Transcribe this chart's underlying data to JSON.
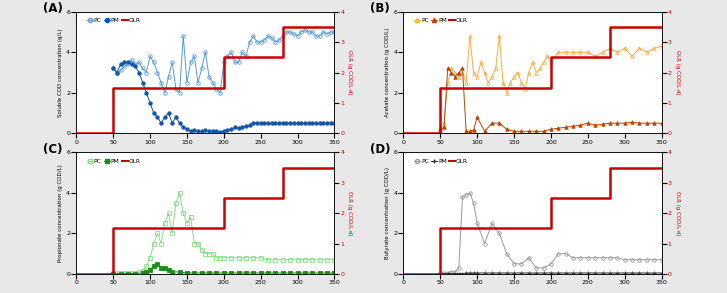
{
  "fig_width": 7.27,
  "fig_height": 2.93,
  "bg_color": "#e8e8e8",
  "panel_bg": "#ffffff",
  "xlim": [
    0,
    350
  ],
  "xticks": [
    0,
    50,
    100,
    150,
    200,
    250,
    300,
    350
  ],
  "panels": {
    "A": {
      "label": "(A)",
      "ylabel_left": "Soluble COD concentration (g/L)",
      "ylabel_right": "OLR (g COD/L·d)",
      "ylim_left": [
        0,
        6
      ],
      "ylim_right": [
        0,
        4
      ],
      "yticks_left": [
        0,
        2,
        4,
        6
      ],
      "yticks_right": [
        0,
        1,
        2,
        3,
        4
      ],
      "color_PC": "#5599dd",
      "color_PM": "#1155aa",
      "color_OLR": "#cc0000",
      "marker_PC": "o",
      "marker_PM": "o",
      "OLR_x": [
        0,
        50,
        50,
        200,
        200,
        280,
        280,
        350
      ],
      "OLR_y": [
        0,
        0,
        1.5,
        1.5,
        2.5,
        2.5,
        3.5,
        3.5
      ],
      "PC_x": [
        50,
        55,
        60,
        65,
        70,
        75,
        80,
        85,
        90,
        95,
        100,
        105,
        110,
        115,
        120,
        125,
        130,
        135,
        140,
        145,
        150,
        155,
        160,
        165,
        170,
        175,
        180,
        185,
        190,
        195,
        200,
        205,
        210,
        215,
        220,
        225,
        230,
        235,
        240,
        245,
        250,
        255,
        260,
        265,
        270,
        275,
        280,
        285,
        290,
        295,
        300,
        305,
        310,
        315,
        320,
        325,
        330,
        335,
        340,
        345,
        350
      ],
      "PC_y": [
        3.2,
        3.0,
        3.1,
        3.3,
        3.4,
        3.6,
        3.4,
        3.5,
        3.2,
        3.0,
        3.8,
        3.5,
        3.0,
        2.5,
        2.0,
        2.8,
        3.5,
        2.2,
        2.0,
        4.8,
        2.5,
        3.5,
        3.8,
        2.5,
        3.2,
        4.0,
        2.8,
        2.5,
        2.2,
        2.0,
        3.5,
        3.8,
        4.0,
        3.5,
        3.5,
        4.0,
        3.8,
        4.5,
        4.8,
        4.5,
        4.5,
        4.6,
        4.8,
        4.7,
        4.5,
        4.6,
        4.8,
        5.0,
        5.0,
        4.9,
        4.8,
        5.0,
        5.1,
        5.0,
        5.0,
        4.8,
        4.8,
        5.0,
        4.9,
        5.0,
        5.0
      ],
      "PM_x": [
        50,
        55,
        60,
        65,
        70,
        75,
        80,
        85,
        90,
        95,
        100,
        105,
        110,
        115,
        120,
        125,
        130,
        135,
        140,
        145,
        150,
        155,
        160,
        165,
        170,
        175,
        180,
        185,
        190,
        195,
        200,
        205,
        210,
        215,
        220,
        225,
        230,
        235,
        240,
        245,
        250,
        255,
        260,
        265,
        270,
        275,
        280,
        285,
        290,
        295,
        300,
        305,
        310,
        315,
        320,
        325,
        330,
        335,
        340,
        345,
        350
      ],
      "PM_y": [
        3.2,
        3.0,
        3.4,
        3.5,
        3.5,
        3.4,
        3.3,
        3.0,
        2.5,
        2.0,
        1.5,
        1.0,
        0.8,
        0.5,
        0.8,
        1.0,
        0.5,
        0.8,
        0.5,
        0.3,
        0.2,
        0.1,
        0.15,
        0.1,
        0.1,
        0.15,
        0.1,
        0.12,
        0.1,
        0.08,
        0.1,
        0.15,
        0.2,
        0.3,
        0.25,
        0.3,
        0.35,
        0.4,
        0.5,
        0.5,
        0.5,
        0.5,
        0.5,
        0.5,
        0.5,
        0.5,
        0.5,
        0.5,
        0.5,
        0.5,
        0.5,
        0.5,
        0.5,
        0.5,
        0.5,
        0.5,
        0.5,
        0.5,
        0.5,
        0.5,
        0.5
      ]
    },
    "B": {
      "label": "(B)",
      "ylabel_left": "Acetate concentration (g COD/L)",
      "ylabel_right": "OLR (g COD/L·d)",
      "ylim_left": [
        0,
        6
      ],
      "ylim_right": [
        0,
        4
      ],
      "yticks_left": [
        0,
        2,
        4,
        6
      ],
      "yticks_right": [
        0,
        1,
        2,
        3,
        4
      ],
      "color_PC": "#ffaa44",
      "color_PM": "#bb4400",
      "color_OLR": "#cc0000",
      "marker_PC": "^",
      "marker_PM": "^",
      "OLR_x": [
        0,
        50,
        50,
        200,
        200,
        280,
        280,
        350
      ],
      "OLR_y": [
        0,
        0,
        1.5,
        1.5,
        2.5,
        2.5,
        3.5,
        3.5
      ],
      "PC_x": [
        50,
        55,
        60,
        65,
        70,
        75,
        80,
        85,
        90,
        95,
        100,
        105,
        110,
        115,
        120,
        125,
        130,
        135,
        140,
        145,
        150,
        155,
        160,
        165,
        170,
        175,
        180,
        185,
        190,
        195,
        200,
        210,
        220,
        230,
        240,
        250,
        260,
        270,
        280,
        290,
        300,
        310,
        320,
        330,
        340,
        350
      ],
      "PC_y": [
        0.3,
        0.5,
        2.5,
        3.2,
        3.0,
        2.8,
        3.0,
        2.5,
        4.8,
        3.0,
        2.8,
        3.5,
        3.0,
        2.5,
        2.8,
        3.2,
        4.8,
        2.5,
        2.0,
        2.5,
        2.8,
        3.0,
        2.5,
        2.2,
        3.0,
        3.5,
        3.0,
        3.2,
        3.5,
        3.8,
        3.5,
        4.0,
        4.0,
        4.0,
        4.0,
        4.0,
        3.8,
        4.0,
        4.2,
        4.0,
        4.2,
        3.8,
        4.2,
        4.0,
        4.2,
        4.3
      ],
      "PM_x": [
        50,
        55,
        60,
        65,
        70,
        75,
        80,
        85,
        90,
        95,
        100,
        110,
        120,
        130,
        140,
        150,
        160,
        170,
        180,
        190,
        200,
        210,
        220,
        230,
        240,
        250,
        260,
        270,
        280,
        290,
        300,
        310,
        320,
        330,
        340,
        350
      ],
      "PM_y": [
        0.2,
        0.3,
        3.2,
        3.0,
        2.8,
        3.0,
        3.2,
        0.1,
        0.1,
        0.15,
        0.8,
        0.1,
        0.5,
        0.5,
        0.2,
        0.1,
        0.1,
        0.1,
        0.1,
        0.1,
        0.2,
        0.25,
        0.3,
        0.35,
        0.4,
        0.5,
        0.4,
        0.45,
        0.5,
        0.5,
        0.5,
        0.55,
        0.5,
        0.5,
        0.5,
        0.5
      ]
    },
    "C": {
      "label": "(C)",
      "ylabel_left": "Propionate concentration (g COD/L)",
      "ylabel_right": "OLR (g COD/L·d)",
      "ylim_left": [
        0,
        6
      ],
      "ylim_right": [
        0,
        4
      ],
      "yticks_left": [
        0,
        2,
        4,
        6
      ],
      "yticks_right": [
        0,
        1,
        2,
        3,
        4
      ],
      "color_PC": "#88dd88",
      "color_PM": "#228822",
      "color_OLR": "#cc0000",
      "marker_PC": "s",
      "marker_PM": "s",
      "OLR_x": [
        0,
        50,
        50,
        200,
        200,
        280,
        280,
        350
      ],
      "OLR_y": [
        0,
        0,
        1.5,
        1.5,
        2.5,
        2.5,
        3.5,
        3.5
      ],
      "PC_x": [
        50,
        55,
        60,
        65,
        70,
        75,
        80,
        85,
        90,
        95,
        100,
        105,
        110,
        115,
        120,
        125,
        130,
        135,
        140,
        145,
        150,
        155,
        160,
        165,
        170,
        175,
        180,
        185,
        190,
        195,
        200,
        210,
        220,
        230,
        240,
        250,
        260,
        270,
        280,
        290,
        300,
        310,
        320,
        330,
        340,
        350
      ],
      "PC_y": [
        0.05,
        0.05,
        0.05,
        0.05,
        0.05,
        0.05,
        0.05,
        0.1,
        0.15,
        0.4,
        0.8,
        1.5,
        2.0,
        1.5,
        2.5,
        3.0,
        2.0,
        3.5,
        4.0,
        3.0,
        2.5,
        2.8,
        1.5,
        1.5,
        1.2,
        1.0,
        1.0,
        1.0,
        0.8,
        0.8,
        0.8,
        0.8,
        0.8,
        0.8,
        0.8,
        0.8,
        0.7,
        0.7,
        0.7,
        0.7,
        0.7,
        0.7,
        0.7,
        0.7,
        0.7,
        0.7
      ],
      "PM_x": [
        50,
        60,
        70,
        80,
        90,
        95,
        100,
        105,
        110,
        115,
        120,
        125,
        130,
        140,
        150,
        160,
        170,
        180,
        190,
        200,
        210,
        220,
        230,
        240,
        250,
        260,
        270,
        280,
        290,
        300,
        310,
        320,
        330,
        340,
        350
      ],
      "PM_y": [
        0.02,
        0.02,
        0.02,
        0.02,
        0.05,
        0.1,
        0.2,
        0.4,
        0.5,
        0.3,
        0.3,
        0.2,
        0.1,
        0.1,
        0.05,
        0.05,
        0.05,
        0.05,
        0.05,
        0.05,
        0.05,
        0.05,
        0.05,
        0.05,
        0.05,
        0.05,
        0.05,
        0.05,
        0.05,
        0.05,
        0.05,
        0.05,
        0.05,
        0.05,
        0.05
      ]
    },
    "D": {
      "label": "(D)",
      "ylabel_left": "Butyrate concentration (g COD/L)",
      "ylabel_right": "OLR (g COD/L·d)",
      "ylim_left": [
        0,
        6
      ],
      "ylim_right": [
        0,
        4
      ],
      "yticks_left": [
        0,
        2,
        4,
        6
      ],
      "yticks_right": [
        0,
        1,
        2,
        3,
        4
      ],
      "color_PC": "#999999",
      "color_PM": "#333333",
      "color_OLR": "#cc0000",
      "marker_PC": "o",
      "marker_PM": "+",
      "OLR_x": [
        0,
        50,
        50,
        200,
        200,
        280,
        280,
        350
      ],
      "OLR_y": [
        0,
        0,
        1.5,
        1.5,
        2.5,
        2.5,
        3.5,
        3.5
      ],
      "PC_x": [
        50,
        55,
        60,
        65,
        70,
        75,
        80,
        85,
        90,
        95,
        100,
        110,
        120,
        130,
        140,
        150,
        160,
        170,
        180,
        190,
        200,
        210,
        220,
        230,
        240,
        250,
        260,
        270,
        280,
        290,
        300,
        310,
        320,
        330,
        340,
        350
      ],
      "PC_y": [
        0.05,
        0.05,
        0.05,
        0.1,
        0.1,
        0.3,
        3.8,
        3.9,
        4.0,
        3.5,
        2.5,
        1.5,
        2.5,
        2.0,
        1.0,
        0.5,
        0.5,
        0.8,
        0.3,
        0.3,
        0.5,
        1.0,
        1.0,
        0.8,
        0.8,
        0.8,
        0.8,
        0.8,
        0.8,
        0.8,
        0.7,
        0.7,
        0.7,
        0.7,
        0.7,
        0.7
      ],
      "PM_x": [
        50,
        60,
        70,
        75,
        80,
        85,
        90,
        95,
        100,
        110,
        120,
        130,
        140,
        150,
        160,
        170,
        180,
        190,
        200,
        210,
        220,
        230,
        240,
        250,
        260,
        270,
        280,
        290,
        300,
        310,
        320,
        330,
        340,
        350
      ],
      "PM_y": [
        0.02,
        0.02,
        0.02,
        0.02,
        0.02,
        0.05,
        0.05,
        0.05,
        0.05,
        0.05,
        0.05,
        0.05,
        0.05,
        0.05,
        0.05,
        0.05,
        0.05,
        0.05,
        0.05,
        0.05,
        0.05,
        0.05,
        0.05,
        0.05,
        0.05,
        0.05,
        0.05,
        0.05,
        0.05,
        0.05,
        0.05,
        0.05,
        0.05,
        0.05
      ]
    }
  }
}
